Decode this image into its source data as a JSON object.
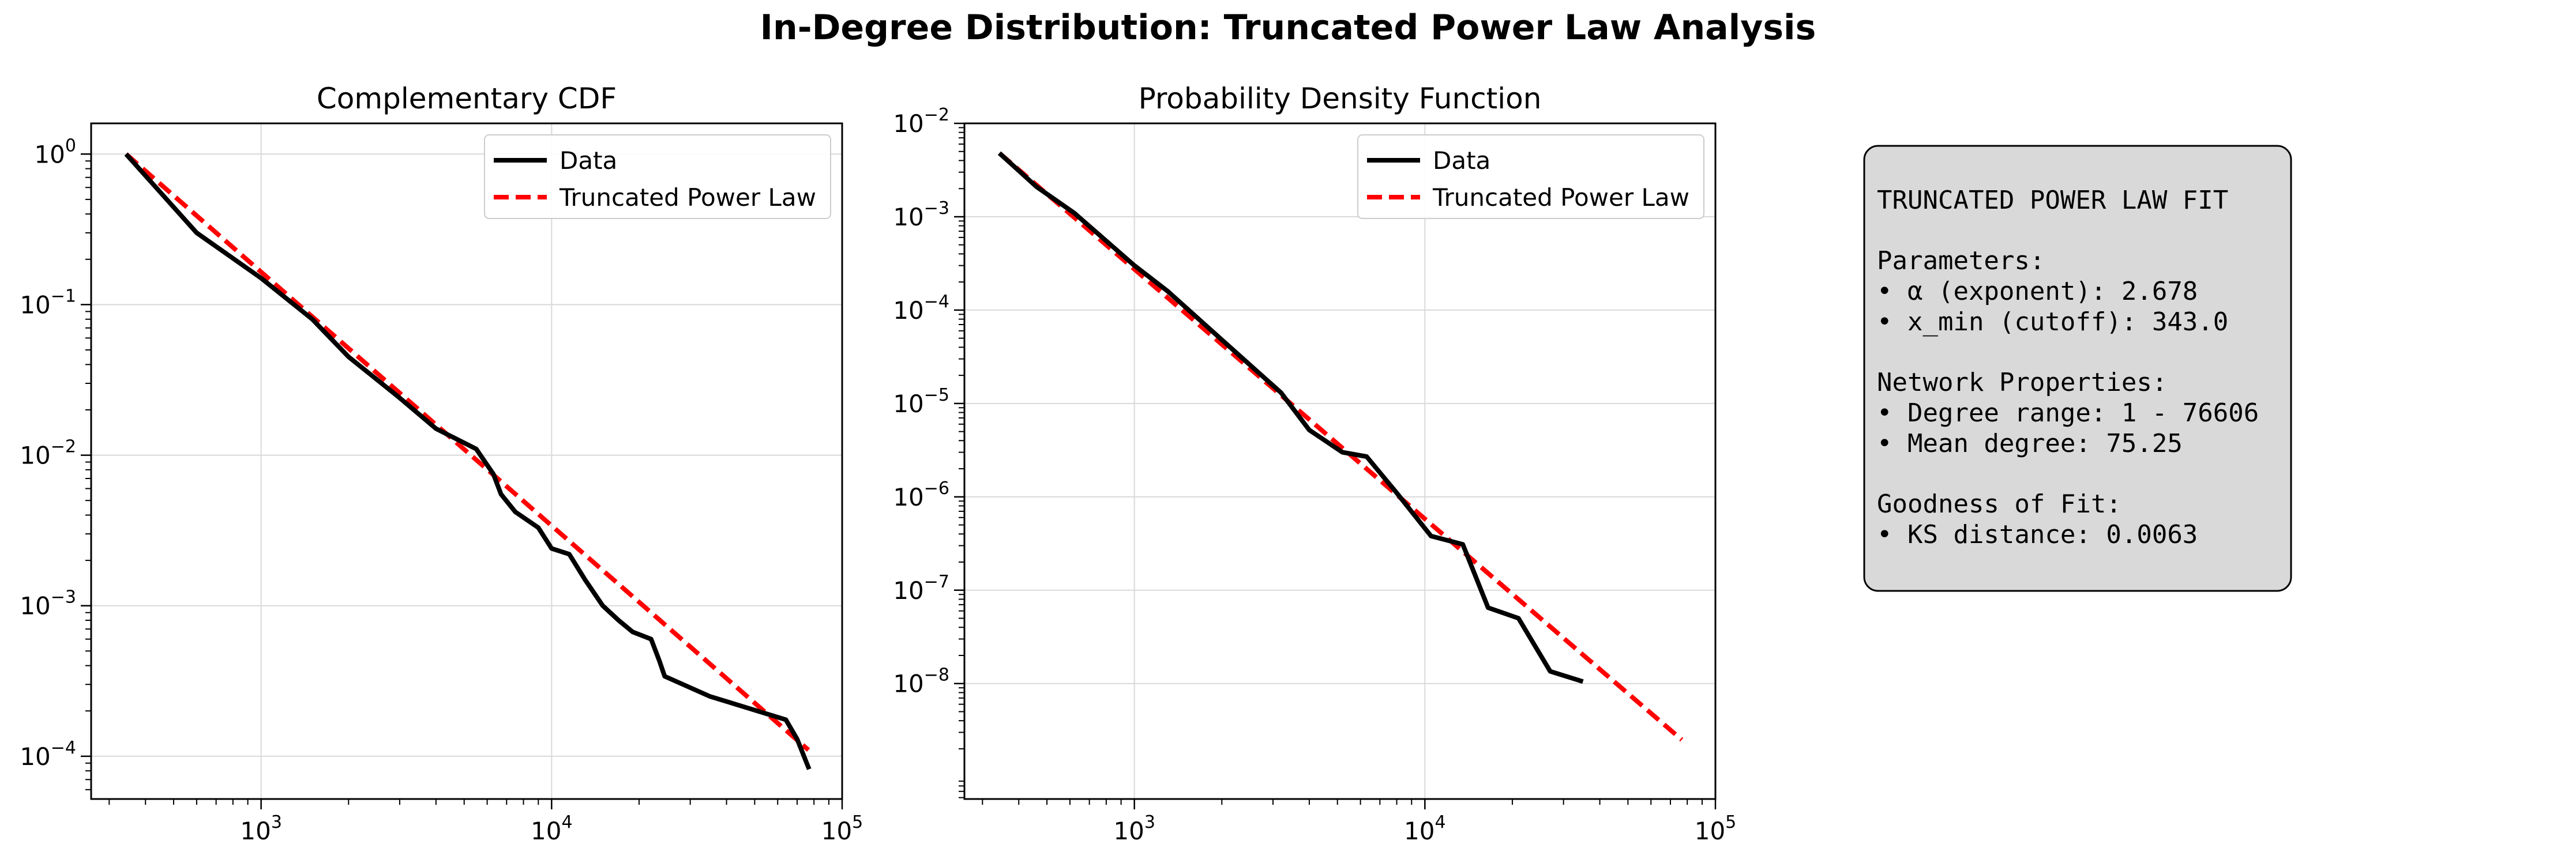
{
  "figure": {
    "title": "In-Degree Distribution: Truncated Power Law Analysis"
  },
  "colors": {
    "data": "#000000",
    "fit": "#ff0000",
    "grid": "#d9d9d9",
    "box_bg": "#d9d9d9"
  },
  "chart_data": [
    {
      "type": "line",
      "title": "Complementary CDF",
      "xlabel": "",
      "ylabel": "",
      "x_scale": "log",
      "y_scale": "log",
      "xlim": [
        260,
        100000
      ],
      "ylim": [
        5.2e-05,
        1.6
      ],
      "x_ticks": [
        {
          "value": 1000,
          "base": "10",
          "exp": "3"
        },
        {
          "value": 10000,
          "base": "10",
          "exp": "4"
        },
        {
          "value": 100000,
          "base": "10",
          "exp": "5"
        }
      ],
      "y_ticks": [
        {
          "value": 1,
          "base": "10",
          "exp": "0"
        },
        {
          "value": 0.1,
          "base": "10",
          "exp": "−1"
        },
        {
          "value": 0.01,
          "base": "10",
          "exp": "−2"
        },
        {
          "value": 0.001,
          "base": "10",
          "exp": "−3"
        },
        {
          "value": 0.0001,
          "base": "10",
          "exp": "−4"
        }
      ],
      "grid": true,
      "legend_position": "upper right",
      "series": [
        {
          "name": "Data",
          "style": "solid",
          "color": "#000000",
          "points": [
            [
              343,
              1.0
            ],
            [
              600,
              0.3
            ],
            [
              1000,
              0.15
            ],
            [
              1500,
              0.08
            ],
            [
              2000,
              0.045
            ],
            [
              3000,
              0.024
            ],
            [
              4000,
              0.015
            ],
            [
              5500,
              0.011
            ],
            [
              6300,
              0.0075
            ],
            [
              6700,
              0.0055
            ],
            [
              7500,
              0.0042
            ],
            [
              9000,
              0.0033
            ],
            [
              10000,
              0.0024
            ],
            [
              11500,
              0.0022
            ],
            [
              13000,
              0.0015
            ],
            [
              15000,
              0.001
            ],
            [
              17000,
              0.0008
            ],
            [
              19000,
              0.00067
            ],
            [
              22000,
              0.0006
            ],
            [
              23500,
              0.00043
            ],
            [
              24500,
              0.00034
            ],
            [
              35000,
              0.00025
            ],
            [
              64000,
              0.000175
            ],
            [
              70000,
              0.00013
            ],
            [
              77000,
              8.2e-05
            ]
          ]
        },
        {
          "name": "Truncated Power Law",
          "style": "dashed",
          "color": "#ff0000",
          "points": [
            [
              343,
              1.0
            ],
            [
              76606,
              0.00011
            ]
          ]
        }
      ]
    },
    {
      "type": "line",
      "title": "Probability Density Function",
      "xlabel": "",
      "ylabel": "",
      "x_scale": "log",
      "y_scale": "log",
      "xlim": [
        260,
        100000
      ],
      "ylim": [
        5.8e-10,
        0.01
      ],
      "x_ticks": [
        {
          "value": 1000,
          "base": "10",
          "exp": "3"
        },
        {
          "value": 10000,
          "base": "10",
          "exp": "4"
        },
        {
          "value": 100000,
          "base": "10",
          "exp": "5"
        }
      ],
      "y_ticks": [
        {
          "value": 0.01,
          "base": "10",
          "exp": "−2"
        },
        {
          "value": 0.001,
          "base": "10",
          "exp": "−3"
        },
        {
          "value": 0.0001,
          "base": "10",
          "exp": "−4"
        },
        {
          "value": 1e-05,
          "base": "10",
          "exp": "−5"
        },
        {
          "value": 1e-06,
          "base": "10",
          "exp": "−6"
        },
        {
          "value": 1e-07,
          "base": "10",
          "exp": "−7"
        },
        {
          "value": 1e-08,
          "base": "10",
          "exp": "−8"
        }
      ],
      "grid": true,
      "legend_position": "upper right",
      "series": [
        {
          "name": "Data",
          "style": "solid",
          "color": "#000000",
          "points": [
            [
              343,
              0.0048
            ],
            [
              460,
              0.0021
            ],
            [
              620,
              0.0011
            ],
            [
              1000,
              0.0003
            ],
            [
              1300,
              0.00016
            ],
            [
              2000,
              4.8e-05
            ],
            [
              3200,
              1.3e-05
            ],
            [
              4000,
              5.2e-06
            ],
            [
              5200,
              3e-06
            ],
            [
              6300,
              2.7e-06
            ],
            [
              8000,
              1.1e-06
            ],
            [
              10500,
              3.8e-07
            ],
            [
              13500,
              3.1e-07
            ],
            [
              16500,
              6.5e-08
            ],
            [
              21000,
              5e-08
            ],
            [
              27000,
              1.35e-08
            ],
            [
              35000,
              1.05e-08
            ]
          ]
        },
        {
          "name": "Truncated Power Law",
          "style": "dashed",
          "color": "#ff0000",
          "points": [
            [
              343,
              0.0048
            ],
            [
              76606,
              2.5e-09
            ]
          ]
        }
      ]
    }
  ],
  "fit_box": {
    "heading": "TRUNCATED POWER LAW FIT",
    "params_header": "Parameters:",
    "param_alpha": "• α (exponent): 2.678",
    "param_xmin": "• x_min (cutoff): 343.0",
    "network_header": "Network Properties:",
    "degree_range": "• Degree range: 1 - 76606",
    "mean_degree": "• Mean degree: 75.25",
    "gof_header": "Goodness of Fit:",
    "ks_distance": "• KS distance: 0.0063"
  }
}
